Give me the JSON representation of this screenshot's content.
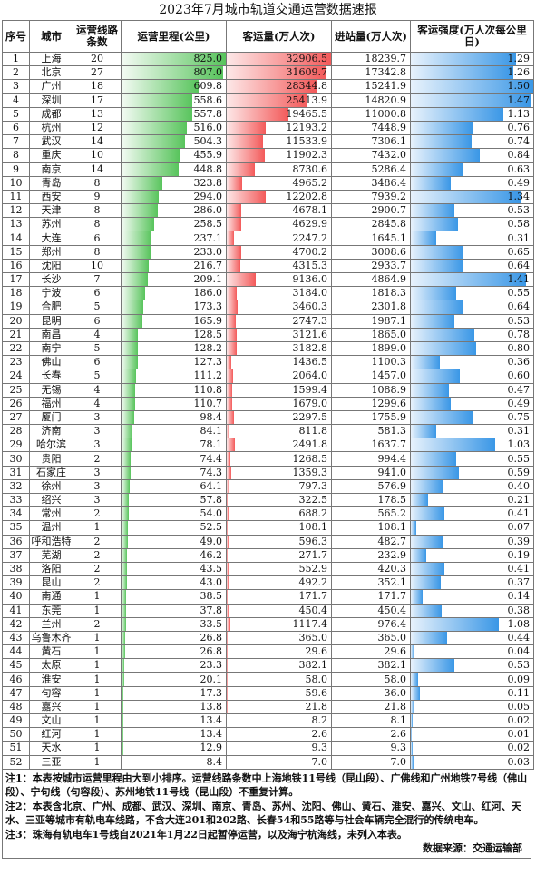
{
  "title": "2023年7月城市轨道交通运营数据速报",
  "headers": {
    "rank": "序号",
    "city": "城市",
    "lines": "运营线路条数",
    "length": "运营里程(公里)",
    "ridership": "客运量(万人次)",
    "entries": "进站量(万人次)",
    "intensity": "客运强度(万人次每公里日)"
  },
  "colors": {
    "length": "#58c45c",
    "ridership": "#f35a5a",
    "intensity": "#3a97e6"
  },
  "maxima": {
    "length": 825.0,
    "ridership": 32906.5,
    "intensity": 1.5
  },
  "rows": [
    {
      "rank": "1",
      "city": "上海",
      "lines": "20",
      "length": "825.0",
      "ridership": "32906.5",
      "entries": "18239.7",
      "intensity": "1.29"
    },
    {
      "rank": "2",
      "city": "北京",
      "lines": "27",
      "length": "807.0",
      "ridership": "31609.7",
      "entries": "17342.8",
      "intensity": "1.26"
    },
    {
      "rank": "3",
      "city": "广州",
      "lines": "18",
      "length": "609.8",
      "ridership": "28344.8",
      "entries": "15241.9",
      "intensity": "1.50"
    },
    {
      "rank": "4",
      "city": "深圳",
      "lines": "17",
      "length": "558.6",
      "ridership": "25413.9",
      "entries": "14820.9",
      "intensity": "1.47"
    },
    {
      "rank": "5",
      "city": "成都",
      "lines": "13",
      "length": "557.8",
      "ridership": "19465.5",
      "entries": "11000.8",
      "intensity": "1.13"
    },
    {
      "rank": "6",
      "city": "杭州",
      "lines": "12",
      "length": "516.0",
      "ridership": "12193.2",
      "entries": "7448.9",
      "intensity": "0.76"
    },
    {
      "rank": "7",
      "city": "武汉",
      "lines": "14",
      "length": "504.3",
      "ridership": "11533.9",
      "entries": "7306.1",
      "intensity": "0.74"
    },
    {
      "rank": "8",
      "city": "重庆",
      "lines": "10",
      "length": "455.9",
      "ridership": "11902.3",
      "entries": "7432.0",
      "intensity": "0.84"
    },
    {
      "rank": "9",
      "city": "南京",
      "lines": "14",
      "length": "448.8",
      "ridership": "8730.6",
      "entries": "5286.4",
      "intensity": "0.63"
    },
    {
      "rank": "10",
      "city": "青岛",
      "lines": "8",
      "length": "323.8",
      "ridership": "4965.2",
      "entries": "3486.4",
      "intensity": "0.49"
    },
    {
      "rank": "11",
      "city": "西安",
      "lines": "9",
      "length": "294.0",
      "ridership": "12202.8",
      "entries": "7939.2",
      "intensity": "1.34"
    },
    {
      "rank": "12",
      "city": "天津",
      "lines": "8",
      "length": "286.0",
      "ridership": "4678.1",
      "entries": "2900.7",
      "intensity": "0.53"
    },
    {
      "rank": "13",
      "city": "苏州",
      "lines": "8",
      "length": "258.5",
      "ridership": "4629.9",
      "entries": "2845.8",
      "intensity": "0.58"
    },
    {
      "rank": "14",
      "city": "大连",
      "lines": "6",
      "length": "237.1",
      "ridership": "2247.2",
      "entries": "1645.1",
      "intensity": "0.31"
    },
    {
      "rank": "15",
      "city": "郑州",
      "lines": "8",
      "length": "233.0",
      "ridership": "4700.2",
      "entries": "3008.6",
      "intensity": "0.65"
    },
    {
      "rank": "16",
      "city": "沈阳",
      "lines": "10",
      "length": "216.7",
      "ridership": "4315.3",
      "entries": "2933.7",
      "intensity": "0.64"
    },
    {
      "rank": "17",
      "city": "长沙",
      "lines": "7",
      "length": "209.1",
      "ridership": "9136.0",
      "entries": "4864.9",
      "intensity": "1.41"
    },
    {
      "rank": "18",
      "city": "宁波",
      "lines": "6",
      "length": "186.0",
      "ridership": "3184.0",
      "entries": "1818.3",
      "intensity": "0.55"
    },
    {
      "rank": "19",
      "city": "合肥",
      "lines": "5",
      "length": "173.3",
      "ridership": "3460.3",
      "entries": "2301.8",
      "intensity": "0.64"
    },
    {
      "rank": "20",
      "city": "昆明",
      "lines": "6",
      "length": "165.9",
      "ridership": "2747.3",
      "entries": "1987.1",
      "intensity": "0.53"
    },
    {
      "rank": "21",
      "city": "南昌",
      "lines": "4",
      "length": "128.5",
      "ridership": "3121.6",
      "entries": "1865.0",
      "intensity": "0.78"
    },
    {
      "rank": "22",
      "city": "南宁",
      "lines": "5",
      "length": "128.2",
      "ridership": "3182.8",
      "entries": "1899.0",
      "intensity": "0.80"
    },
    {
      "rank": "23",
      "city": "佛山",
      "lines": "6",
      "length": "127.3",
      "ridership": "1436.5",
      "entries": "1100.3",
      "intensity": "0.36"
    },
    {
      "rank": "24",
      "city": "长春",
      "lines": "5",
      "length": "111.2",
      "ridership": "2064.0",
      "entries": "1457.0",
      "intensity": "0.60"
    },
    {
      "rank": "25",
      "city": "无锡",
      "lines": "4",
      "length": "110.8",
      "ridership": "1599.4",
      "entries": "1088.9",
      "intensity": "0.47"
    },
    {
      "rank": "26",
      "city": "福州",
      "lines": "4",
      "length": "110.7",
      "ridership": "1679.0",
      "entries": "1299.6",
      "intensity": "0.49"
    },
    {
      "rank": "27",
      "city": "厦门",
      "lines": "3",
      "length": "98.4",
      "ridership": "2297.5",
      "entries": "1755.9",
      "intensity": "0.75"
    },
    {
      "rank": "28",
      "city": "济南",
      "lines": "3",
      "length": "84.1",
      "ridership": "811.8",
      "entries": "581.3",
      "intensity": "0.31"
    },
    {
      "rank": "29",
      "city": "哈尔滨",
      "lines": "3",
      "length": "78.1",
      "ridership": "2491.8",
      "entries": "1637.7",
      "intensity": "1.03"
    },
    {
      "rank": "30",
      "city": "贵阳",
      "lines": "2",
      "length": "74.4",
      "ridership": "1268.5",
      "entries": "994.4",
      "intensity": "0.55"
    },
    {
      "rank": "31",
      "city": "石家庄",
      "lines": "3",
      "length": "74.3",
      "ridership": "1359.3",
      "entries": "941.0",
      "intensity": "0.59"
    },
    {
      "rank": "32",
      "city": "徐州",
      "lines": "3",
      "length": "64.1",
      "ridership": "797.3",
      "entries": "576.9",
      "intensity": "0.40"
    },
    {
      "rank": "33",
      "city": "绍兴",
      "lines": "3",
      "length": "57.8",
      "ridership": "322.5",
      "entries": "178.5",
      "intensity": "0.21"
    },
    {
      "rank": "34",
      "city": "常州",
      "lines": "2",
      "length": "54.0",
      "ridership": "688.2",
      "entries": "565.2",
      "intensity": "0.41"
    },
    {
      "rank": "35",
      "city": "温州",
      "lines": "1",
      "length": "52.5",
      "ridership": "108.1",
      "entries": "108.1",
      "intensity": "0.07"
    },
    {
      "rank": "36",
      "city": "呼和浩特",
      "lines": "2",
      "length": "49.0",
      "ridership": "596.3",
      "entries": "482.7",
      "intensity": "0.39"
    },
    {
      "rank": "37",
      "city": "芜湖",
      "lines": "2",
      "length": "46.2",
      "ridership": "271.7",
      "entries": "232.9",
      "intensity": "0.19"
    },
    {
      "rank": "38",
      "city": "洛阳",
      "lines": "2",
      "length": "43.5",
      "ridership": "552.9",
      "entries": "420.3",
      "intensity": "0.41"
    },
    {
      "rank": "39",
      "city": "昆山",
      "lines": "2",
      "length": "43.0",
      "ridership": "492.2",
      "entries": "352.1",
      "intensity": "0.37"
    },
    {
      "rank": "40",
      "city": "南通",
      "lines": "1",
      "length": "38.5",
      "ridership": "171.7",
      "entries": "171.7",
      "intensity": "0.14"
    },
    {
      "rank": "41",
      "city": "东莞",
      "lines": "1",
      "length": "37.8",
      "ridership": "450.4",
      "entries": "450.4",
      "intensity": "0.38"
    },
    {
      "rank": "42",
      "city": "兰州",
      "lines": "2",
      "length": "33.5",
      "ridership": "1117.4",
      "entries": "976.4",
      "intensity": "1.08"
    },
    {
      "rank": "43",
      "city": "乌鲁木齐",
      "lines": "1",
      "length": "26.8",
      "ridership": "365.0",
      "entries": "365.0",
      "intensity": "0.44"
    },
    {
      "rank": "44",
      "city": "黄石",
      "lines": "1",
      "length": "26.8",
      "ridership": "29.6",
      "entries": "29.6",
      "intensity": "0.04"
    },
    {
      "rank": "45",
      "city": "太原",
      "lines": "1",
      "length": "23.3",
      "ridership": "382.1",
      "entries": "382.1",
      "intensity": "0.53"
    },
    {
      "rank": "46",
      "city": "淮安",
      "lines": "1",
      "length": "20.1",
      "ridership": "58.0",
      "entries": "58.0",
      "intensity": "0.09"
    },
    {
      "rank": "47",
      "city": "句容",
      "lines": "1",
      "length": "17.3",
      "ridership": "59.6",
      "entries": "36.0",
      "intensity": "0.11"
    },
    {
      "rank": "48",
      "city": "嘉兴",
      "lines": "1",
      "length": "13.8",
      "ridership": "21.8",
      "entries": "21.8",
      "intensity": "0.05"
    },
    {
      "rank": "49",
      "city": "文山",
      "lines": "1",
      "length": "13.4",
      "ridership": "8.2",
      "entries": "8.1",
      "intensity": "0.02"
    },
    {
      "rank": "50",
      "city": "红河",
      "lines": "1",
      "length": "13.4",
      "ridership": "2.6",
      "entries": "2.6",
      "intensity": "0.01"
    },
    {
      "rank": "51",
      "city": "天水",
      "lines": "1",
      "length": "12.9",
      "ridership": "9.3",
      "entries": "9.3",
      "intensity": "0.02"
    },
    {
      "rank": "52",
      "city": "三亚",
      "lines": "1",
      "length": "8.4",
      "ridership": "7.0",
      "entries": "7.0",
      "intensity": "0.03"
    }
  ],
  "notes": [
    "注1：本表按城市运营里程由大到小排序。运营线路条数中上海地铁11号线（昆山段）、广佛线和广州地铁7号线（佛山段）、宁句线（句容段）、苏州地铁11号线（昆山段）不重复计算。",
    "注2：本表含北京、广州、成都、武汉、深圳、南京、青岛、苏州、沈阳、佛山、黄石、淮安、嘉兴、文山、红河、天水、三亚等城市有轨电车线路，不含大连201和202路、长春54和55路等与社会车辆完全混行的传统电车。",
    "注3：珠海有轨电车1号线自2021年1月22日起暂停运营，以及海宁杭海线，未列入本表。"
  ],
  "source": "数据来源：交通运输部"
}
